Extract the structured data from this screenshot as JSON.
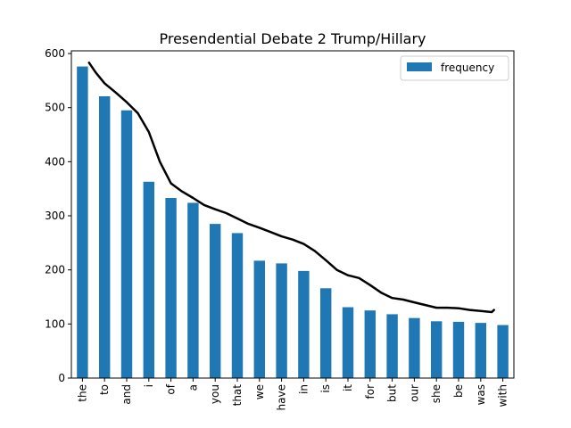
{
  "chart_data": {
    "type": "bar",
    "title": "Presendential Debate 2 Trump/Hillary",
    "xlabel": "",
    "ylabel": "",
    "ylim": [
      0,
      605
    ],
    "yticks": [
      0,
      100,
      200,
      300,
      400,
      500,
      600
    ],
    "categories": [
      "the",
      "to",
      "and",
      "i",
      "of",
      "a",
      "you",
      "that",
      "we",
      "have",
      "in",
      "is",
      "it",
      "for",
      "but",
      "our",
      "she",
      "be",
      "was",
      "with"
    ],
    "series": [
      {
        "name": "frequency",
        "color": "#1f77b4",
        "values": [
          576,
          521,
          495,
          363,
          333,
          324,
          285,
          268,
          217,
          212,
          198,
          166,
          131,
          125,
          118,
          111,
          105,
          104,
          102,
          98
        ]
      }
    ],
    "overlay_line": {
      "color": "#000000",
      "description_points_x_category_index": [
        0.3,
        0.6,
        1.0,
        1.5,
        2.0,
        2.5,
        3.0,
        3.5,
        4.0,
        4.5,
        5.0,
        5.5,
        6.0,
        6.5,
        7.0,
        7.5,
        8.0,
        8.5,
        9.0,
        9.5,
        10.0,
        10.5,
        11.0,
        11.5,
        12.0,
        12.5,
        13.0,
        13.5,
        14.0,
        14.5,
        15.0,
        15.5,
        16.0,
        16.5,
        17.0,
        17.5,
        18.0,
        18.5,
        18.6
      ],
      "y": [
        583,
        565,
        545,
        528,
        510,
        490,
        455,
        400,
        360,
        345,
        333,
        320,
        312,
        305,
        295,
        285,
        278,
        270,
        262,
        256,
        248,
        235,
        218,
        200,
        190,
        185,
        172,
        158,
        148,
        145,
        140,
        135,
        130,
        130,
        129,
        126,
        124,
        122,
        126
      ]
    },
    "legend": {
      "position": "top-right",
      "entries": [
        "frequency"
      ]
    },
    "grid": false
  }
}
